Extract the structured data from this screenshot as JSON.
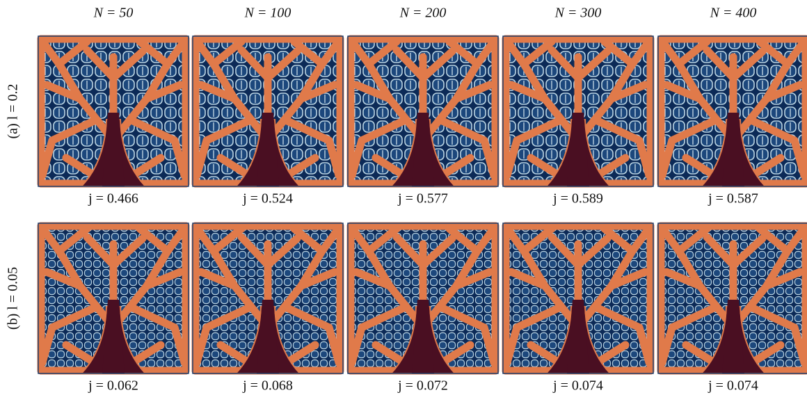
{
  "columns": [
    "N = 50",
    "N = 100",
    "N = 200",
    "N = 300",
    "N = 400"
  ],
  "rows": [
    {
      "label": "(a) l = 0.2",
      "captions": [
        "j = 0.466",
        "j = 0.524",
        "j = 0.577",
        "j = 0.589",
        "j = 0.587"
      ]
    },
    {
      "label": "(b) l = 0.05",
      "captions": [
        "j = 0.062",
        "j = 0.068",
        "j = 0.072",
        "j = 0.074",
        "j = 0.074"
      ]
    }
  ]
}
